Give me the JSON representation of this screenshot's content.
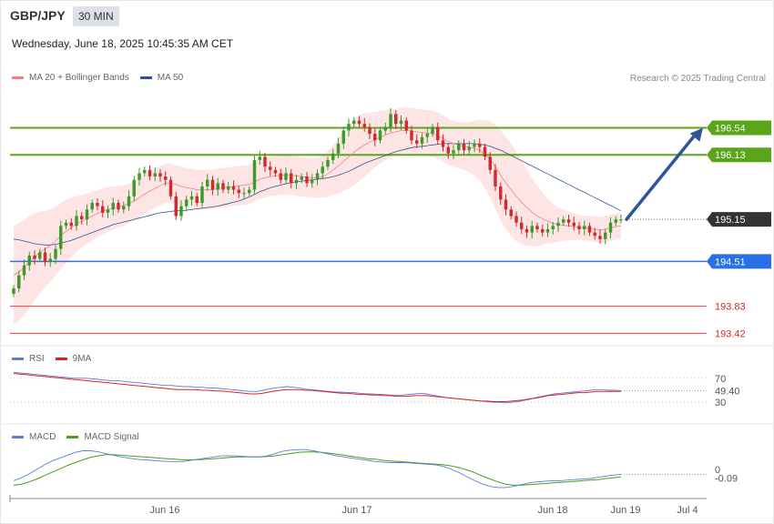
{
  "header": {
    "symbol": "GBP/JPY",
    "timeframe": "30 MIN",
    "datetime": "Wednesday, June 18, 2025 10:45:35 AM CET",
    "credit": "Research © 2025 Trading Central"
  },
  "legends": {
    "price": [
      {
        "label": "MA 20 + Bollinger Bands",
        "color": "#f08080"
      },
      {
        "label": "MA 50",
        "color": "#2f5597"
      }
    ],
    "rsi": [
      {
        "label": "RSI",
        "color": "#5b7fd6"
      },
      {
        "label": "9MA",
        "color": "#e02020"
      }
    ],
    "macd": [
      {
        "label": "MACD",
        "color": "#5b7fd6"
      },
      {
        "label": "MACD Signal",
        "color": "#4a9e1a"
      }
    ]
  },
  "colors": {
    "up": "#3c9a2a",
    "down": "#d02a2a",
    "resistance": "#5aa51a",
    "support": "#3a6fe0",
    "target_red": "#e84040",
    "arrow": "#2f5597",
    "bb_fill": "#fde2e2"
  },
  "chart_data": [
    {
      "type": "candlestick",
      "name": "GBP/JPY 30 MIN",
      "x_ticks": [
        "Jun 16",
        "Jun 17",
        "Jun 18",
        "Jun 19",
        "Jul 4"
      ],
      "y_range": [
        193.3,
        197.1
      ],
      "last_price": 195.15,
      "levels": [
        {
          "label": "196.54",
          "value": 196.54,
          "kind": "resistance"
        },
        {
          "label": "196.13",
          "value": 196.13,
          "kind": "resistance"
        },
        {
          "label": "195.15",
          "value": 195.15,
          "kind": "last"
        },
        {
          "label": "194.51",
          "value": 194.51,
          "kind": "support"
        },
        {
          "label": "193.83",
          "value": 193.83,
          "kind": "target"
        },
        {
          "label": "193.42",
          "value": 193.42,
          "kind": "target"
        }
      ],
      "forecast_arrow": {
        "from": 195.15,
        "to": 196.54,
        "direction": "up"
      },
      "close": [
        194.1,
        194.3,
        194.45,
        194.6,
        194.55,
        194.65,
        194.5,
        194.55,
        194.7,
        195.05,
        195.1,
        195.05,
        195.2,
        195.15,
        195.3,
        195.4,
        195.35,
        195.25,
        195.3,
        195.4,
        195.3,
        195.35,
        195.5,
        195.75,
        195.85,
        195.9,
        195.8,
        195.85,
        195.8,
        195.75,
        195.5,
        195.2,
        195.35,
        195.45,
        195.5,
        195.4,
        195.65,
        195.75,
        195.6,
        195.7,
        195.6,
        195.65,
        195.6,
        195.55,
        195.55,
        195.6,
        196.05,
        196.1,
        195.95,
        195.9,
        195.85,
        195.75,
        195.85,
        195.7,
        195.75,
        195.8,
        195.7,
        195.75,
        195.85,
        195.95,
        196.05,
        196.15,
        196.3,
        196.5,
        196.6,
        196.65,
        196.6,
        196.55,
        196.45,
        196.35,
        196.5,
        196.55,
        196.75,
        196.6,
        196.65,
        196.5,
        196.35,
        196.3,
        196.4,
        196.45,
        196.55,
        196.35,
        196.25,
        196.15,
        196.2,
        196.3,
        196.2,
        196.25,
        196.3,
        196.25,
        196.1,
        195.9,
        195.65,
        195.45,
        195.3,
        195.2,
        195.1,
        195.0,
        194.95,
        195.05,
        195.0,
        194.95,
        195.0,
        195.05,
        195.1,
        195.15,
        195.1,
        195.05,
        195.0,
        195.05,
        194.95,
        194.9,
        194.85,
        194.95,
        195.1,
        195.15,
        195.15
      ],
      "ma20": [
        194.3,
        194.35,
        194.42,
        194.5,
        194.58,
        194.65,
        194.7,
        194.75,
        194.82,
        194.9,
        194.97,
        195.03,
        195.08,
        195.12,
        195.16,
        195.2,
        195.24,
        195.27,
        195.3,
        195.32,
        195.34,
        195.36,
        195.39,
        195.43,
        195.48,
        195.53,
        195.58,
        195.62,
        195.66,
        195.7,
        195.7,
        195.68,
        195.65,
        195.63,
        195.62,
        195.6,
        195.6,
        195.6,
        195.6,
        195.62,
        195.63,
        195.64,
        195.65,
        195.66,
        195.67,
        195.68,
        195.72,
        195.76,
        195.78,
        195.8,
        195.81,
        195.82,
        195.83,
        195.82,
        195.81,
        195.8,
        195.79,
        195.78,
        195.78,
        195.8,
        195.84,
        195.9,
        195.96,
        196.03,
        196.1,
        196.17,
        196.23,
        196.28,
        196.32,
        196.36,
        196.4,
        196.43,
        196.46,
        196.48,
        196.5,
        196.5,
        196.49,
        196.48,
        196.47,
        196.46,
        196.45,
        196.42,
        196.38,
        196.33,
        196.3,
        196.28,
        196.26,
        196.25,
        196.23,
        196.2,
        196.14,
        196.06,
        195.95,
        195.82,
        195.7,
        195.6,
        195.5,
        195.41,
        195.33,
        195.26,
        195.2,
        195.16,
        195.12,
        195.09,
        195.07,
        195.06,
        195.05,
        195.04,
        195.03,
        195.02,
        195.01,
        195.0,
        194.99,
        195.0,
        195.02,
        195.04,
        195.05
      ],
      "ma50": [
        194.85,
        194.84,
        194.82,
        194.8,
        194.78,
        194.77,
        194.76,
        194.76,
        194.77,
        194.79,
        194.81,
        194.83,
        194.86,
        194.89,
        194.92,
        194.95,
        194.98,
        195.01,
        195.04,
        195.07,
        195.09,
        195.11,
        195.13,
        195.15,
        195.17,
        195.19,
        195.21,
        195.23,
        195.25,
        195.26,
        195.27,
        195.28,
        195.28,
        195.29,
        195.3,
        195.31,
        195.32,
        195.33,
        195.34,
        195.35,
        195.37,
        195.39,
        195.41,
        195.43,
        195.46,
        195.49,
        195.53,
        195.57,
        195.6,
        195.63,
        195.65,
        195.67,
        195.69,
        195.71,
        195.72,
        195.73,
        195.74,
        195.75,
        195.76,
        195.77,
        195.78,
        195.8,
        195.82,
        195.85,
        195.88,
        195.92,
        195.96,
        196.0,
        196.03,
        196.06,
        196.09,
        196.12,
        196.15,
        196.18,
        196.2,
        196.22,
        196.24,
        196.25,
        196.26,
        196.27,
        196.28,
        196.29,
        196.3,
        196.3,
        196.3,
        196.3,
        196.3,
        196.3,
        196.3,
        196.29,
        196.28,
        196.26,
        196.23,
        196.2,
        196.16,
        196.12,
        196.08,
        196.04,
        196.0,
        195.96,
        195.92,
        195.88,
        195.84,
        195.8,
        195.76,
        195.72,
        195.68,
        195.64,
        195.6,
        195.56,
        195.52,
        195.48,
        195.44,
        195.4,
        195.36,
        195.32,
        195.28
      ],
      "bb_width": [
        0.75,
        0.74,
        0.72,
        0.7,
        0.66,
        0.62,
        0.58,
        0.55,
        0.52,
        0.5,
        0.48,
        0.45,
        0.42,
        0.4,
        0.38,
        0.37,
        0.36,
        0.35,
        0.34,
        0.33,
        0.32,
        0.31,
        0.3,
        0.3,
        0.3,
        0.3,
        0.3,
        0.3,
        0.3,
        0.3,
        0.3,
        0.3,
        0.3,
        0.3,
        0.3,
        0.3,
        0.3,
        0.3,
        0.3,
        0.3,
        0.3,
        0.3,
        0.3,
        0.3,
        0.3,
        0.3,
        0.3,
        0.3,
        0.3,
        0.3,
        0.3,
        0.3,
        0.3,
        0.3,
        0.3,
        0.3,
        0.3,
        0.3,
        0.3,
        0.32,
        0.35,
        0.38,
        0.42,
        0.45,
        0.48,
        0.5,
        0.5,
        0.48,
        0.45,
        0.42,
        0.4,
        0.38,
        0.36,
        0.35,
        0.35,
        0.35,
        0.35,
        0.35,
        0.35,
        0.35,
        0.35,
        0.35,
        0.35,
        0.35,
        0.35,
        0.35,
        0.36,
        0.38,
        0.42,
        0.46,
        0.52,
        0.58,
        0.64,
        0.68,
        0.7,
        0.7,
        0.68,
        0.64,
        0.58,
        0.52,
        0.46,
        0.4,
        0.34,
        0.3,
        0.26,
        0.24,
        0.22,
        0.2,
        0.19,
        0.19,
        0.19,
        0.2,
        0.2,
        0.2,
        0.2,
        0.2,
        0.2
      ]
    },
    {
      "type": "line",
      "name": "RSI",
      "levels": [
        70,
        30
      ],
      "last_value": 49.4,
      "last_label": "49.40",
      "y_range": [
        0,
        100
      ],
      "rsi": [
        80,
        79,
        78,
        77,
        76,
        75,
        74,
        73,
        72,
        71,
        70,
        70,
        70,
        69,
        68,
        67,
        66,
        66,
        65,
        64,
        63,
        62,
        61,
        60,
        59,
        58,
        58,
        57,
        56,
        56,
        55,
        55,
        54,
        54,
        53,
        52,
        51,
        50,
        49,
        48,
        48,
        50,
        52,
        54,
        55,
        56,
        55,
        54,
        52,
        51,
        50,
        49,
        48,
        47,
        47,
        46,
        46,
        45,
        44,
        44,
        43,
        43,
        42,
        42,
        42,
        43,
        44,
        45,
        44,
        42,
        40,
        38,
        37,
        36,
        35,
        34,
        33,
        32,
        31,
        30,
        30,
        29,
        30,
        31,
        33,
        35,
        38,
        40,
        42,
        44,
        45,
        46,
        47,
        48,
        49,
        50,
        51,
        51,
        50,
        50,
        49.4
      ],
      "ma9": [
        78,
        77,
        76,
        75,
        74,
        73,
        72,
        71,
        70,
        69,
        68,
        67,
        66,
        65,
        64,
        63,
        62,
        61,
        60,
        59,
        58,
        57,
        56,
        55,
        54,
        53,
        52,
        51,
        51,
        51,
        51,
        50,
        50,
        49,
        49,
        48,
        47,
        46,
        45,
        44,
        44,
        45,
        47,
        49,
        50,
        51,
        51,
        51,
        50,
        50,
        49,
        48,
        47,
        46,
        45,
        45,
        44,
        43,
        43,
        42,
        42,
        41,
        41,
        40,
        40,
        40,
        41,
        41,
        41,
        40,
        39,
        38,
        37,
        36,
        35,
        34,
        33,
        32,
        32,
        31,
        31,
        31,
        32,
        33,
        34,
        36,
        37,
        39,
        41,
        42,
        43,
        44,
        45,
        46,
        46,
        47,
        48,
        48,
        48,
        48,
        48
      ]
    },
    {
      "type": "line",
      "name": "MACD",
      "zero_label": "0",
      "last_value": -0.09,
      "last_label": "-0.09",
      "y_range": [
        -0.45,
        0.45
      ],
      "macd": [
        -0.2,
        -0.15,
        -0.08,
        0,
        0.08,
        0.15,
        0.2,
        0.25,
        0.3,
        0.33,
        0.33,
        0.31,
        0.28,
        0.25,
        0.22,
        0.2,
        0.18,
        0.17,
        0.16,
        0.15,
        0.14,
        0.14,
        0.14,
        0.16,
        0.18,
        0.2,
        0.22,
        0.24,
        0.24,
        0.24,
        0.23,
        0.22,
        0.22,
        0.24,
        0.28,
        0.32,
        0.34,
        0.35,
        0.35,
        0.33,
        0.3,
        0.27,
        0.24,
        0.22,
        0.2,
        0.18,
        0.16,
        0.14,
        0.13,
        0.12,
        0.12,
        0.12,
        0.11,
        0.1,
        0.09,
        0.08,
        0.05,
        0,
        -0.06,
        -0.13,
        -0.2,
        -0.26,
        -0.3,
        -0.32,
        -0.32,
        -0.3,
        -0.27,
        -0.24,
        -0.22,
        -0.21,
        -0.2,
        -0.2,
        -0.19,
        -0.18,
        -0.17,
        -0.16,
        -0.14,
        -0.12,
        -0.1,
        -0.09
      ],
      "signal": [
        -0.28,
        -0.26,
        -0.22,
        -0.17,
        -0.11,
        -0.05,
        0.01,
        0.07,
        0.12,
        0.17,
        0.21,
        0.24,
        0.26,
        0.26,
        0.25,
        0.24,
        0.23,
        0.22,
        0.21,
        0.2,
        0.19,
        0.18,
        0.17,
        0.17,
        0.17,
        0.18,
        0.19,
        0.2,
        0.21,
        0.22,
        0.22,
        0.22,
        0.22,
        0.23,
        0.24,
        0.26,
        0.28,
        0.3,
        0.31,
        0.31,
        0.3,
        0.29,
        0.27,
        0.25,
        0.23,
        0.21,
        0.19,
        0.18,
        0.16,
        0.15,
        0.14,
        0.13,
        0.12,
        0.11,
        0.1,
        0.09,
        0.08,
        0.06,
        0.03,
        -0.01,
        -0.06,
        -0.12,
        -0.17,
        -0.22,
        -0.26,
        -0.28,
        -0.28,
        -0.27,
        -0.26,
        -0.25,
        -0.24,
        -0.23,
        -0.22,
        -0.21,
        -0.2,
        -0.19,
        -0.18,
        -0.16,
        -0.15,
        -0.13
      ]
    }
  ]
}
